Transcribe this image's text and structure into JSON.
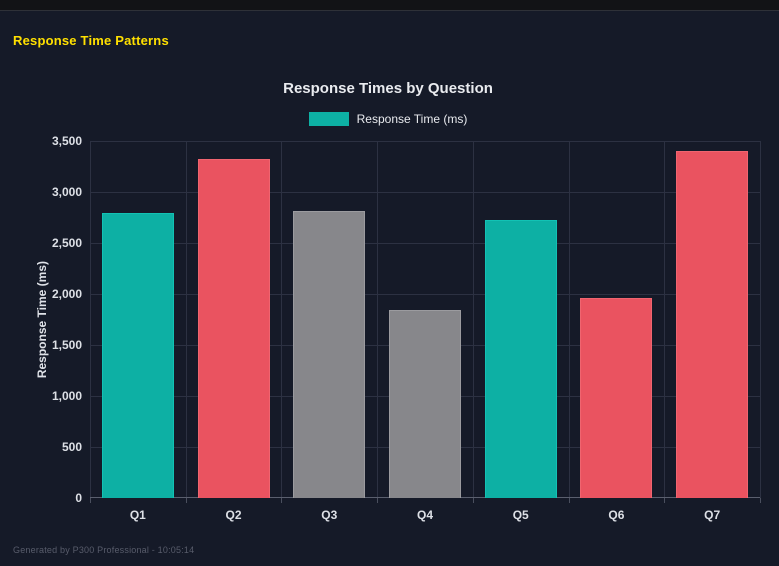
{
  "page": {
    "heading": "Response Time Patterns",
    "footer": "Generated by P300 Professional - 10:05:14"
  },
  "chart_data": {
    "type": "bar",
    "title": "Response Times by Question",
    "legend_label": "Response Time (ms)",
    "legend_position": "top",
    "categories": [
      "Q1",
      "Q2",
      "Q3",
      "Q4",
      "Q5",
      "Q6",
      "Q7"
    ],
    "values": [
      2790,
      3320,
      2810,
      1845,
      2725,
      1960,
      3405
    ],
    "bar_colors": [
      "#0db0a4",
      "#ea5360",
      "#87878b",
      "#87878b",
      "#0db0a4",
      "#ea5360",
      "#ea5360"
    ],
    "bar_border_colors": [
      "#12c2b4",
      "#f06570",
      "#9b9b9f",
      "#9b9b9f",
      "#12c2b4",
      "#f06570",
      "#f06570"
    ],
    "xlabel": "",
    "ylabel": "Response Time (ms)",
    "ylim": [
      0,
      3500
    ],
    "ytick_step": 500,
    "yticks": [
      "0",
      "500",
      "1,000",
      "1,500",
      "2,000",
      "2,500",
      "3,000",
      "3,500"
    ],
    "grid": true
  },
  "colors": {
    "page_background": "#151a28",
    "topbar_background": "#121316",
    "heading_text": "#ffe000",
    "title_text": "#e9ebef",
    "tick_text": "#dde0e6",
    "gridline": "#2c3142",
    "axis_baseline": "#5a5f6e",
    "teal": "#0db0a4",
    "red": "#ea5360",
    "gray": "#87878b",
    "footer_text": "#585c6b"
  }
}
